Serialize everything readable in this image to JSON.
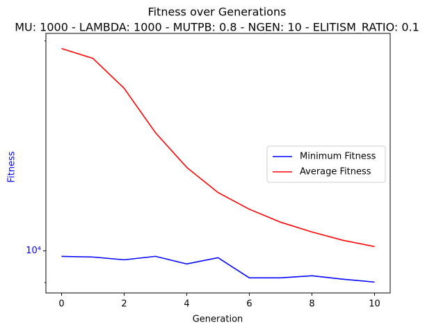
{
  "chart_data": {
    "type": "line",
    "title": "Fitness over Generations",
    "subtitle": "MU: 1000 - LAMBDA: 1000 - MUTPB: 0.8 - NGEN: 10 - ELITISM_RATIO: 0.1",
    "x_label": "Generation",
    "y_label": "Fitness",
    "y_label_color": "#0000ff",
    "x": [
      0,
      1,
      2,
      3,
      4,
      5,
      6,
      7,
      8,
      9,
      10
    ],
    "series": [
      {
        "name": "Minimum Fitness",
        "color": "#0000ff",
        "values": [
          9818,
          9796,
          9706,
          9818,
          9574,
          9773,
          9144,
          9144,
          9208,
          9103,
          9018
        ]
      },
      {
        "name": "Average Fitness",
        "color": "#ff0000",
        "values": [
          19500,
          18880,
          17100,
          14770,
          13170,
          12120,
          11470,
          10990,
          10640,
          10350,
          10140
        ]
      }
    ],
    "xlim": [
      -0.5,
      10.5
    ],
    "xticks": [
      0,
      2,
      4,
      6,
      8,
      10
    ],
    "ylim": [
      8700,
      20500
    ],
    "yticks": [
      {
        "value": 10000,
        "label": "10⁴"
      }
    ],
    "yminorticks": [
      9000,
      20000
    ],
    "log_y": true,
    "grid": false,
    "legend": "right"
  }
}
